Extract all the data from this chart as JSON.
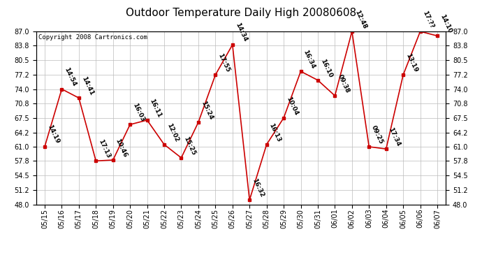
{
  "title": "Outdoor Temperature Daily High 20080608",
  "copyright": "Copyright 2008 Cartronics.com",
  "dates": [
    "05/15",
    "05/16",
    "05/17",
    "05/18",
    "05/19",
    "05/20",
    "05/21",
    "05/22",
    "05/23",
    "05/24",
    "05/25",
    "05/26",
    "05/27",
    "05/28",
    "05/29",
    "05/30",
    "05/31",
    "06/01",
    "06/02",
    "06/03",
    "06/04",
    "06/05",
    "06/06",
    "06/07"
  ],
  "temps": [
    61.0,
    74.0,
    72.0,
    57.8,
    58.0,
    66.0,
    67.0,
    61.5,
    58.5,
    66.5,
    77.2,
    84.0,
    49.0,
    61.5,
    67.5,
    78.0,
    76.0,
    72.5,
    87.0,
    61.0,
    60.5,
    77.2,
    87.0,
    86.0
  ],
  "time_labels": [
    "14:19",
    "14:54",
    "14:41",
    "17:13",
    "10:46",
    "16:03",
    "16:11",
    "12:02",
    "15:25",
    "15:24",
    "17:55",
    "14:34",
    "16:32",
    "16:13",
    "10:04",
    "16:34",
    "16:10",
    "09:38",
    "12:48",
    "09:25",
    "17:34",
    "13:19",
    "17:??",
    "14:10"
  ],
  "ylim": [
    48.0,
    87.0
  ],
  "yticks": [
    48.0,
    51.2,
    54.5,
    57.8,
    61.0,
    64.2,
    67.5,
    70.8,
    74.0,
    77.2,
    80.5,
    83.8,
    87.0
  ],
  "line_color": "#cc0000",
  "marker_color": "#cc0000",
  "bg_color": "#ffffff",
  "plot_bg_color": "#ffffff",
  "grid_color": "#bbbbbb",
  "title_fontsize": 11,
  "copyright_fontsize": 6.5,
  "label_fontsize": 6.5,
  "tick_fontsize": 7,
  "label_rotation": -65
}
